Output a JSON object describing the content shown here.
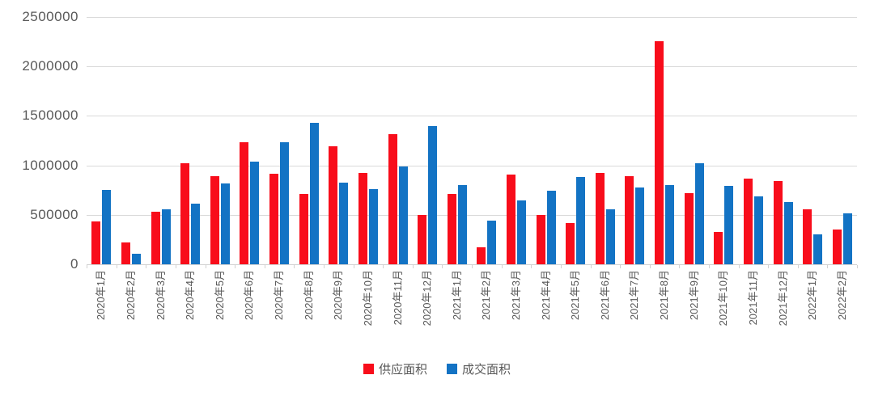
{
  "chart_data": {
    "type": "bar",
    "title": "",
    "categories": [
      "2020年1月",
      "2020年2月",
      "2020年3月",
      "2020年4月",
      "2020年5月",
      "2020年6月",
      "2020年7月",
      "2020年8月",
      "2020年9月",
      "2020年10月",
      "2020年11月",
      "2020年12月",
      "2021年1月",
      "2021年2月",
      "2021年3月",
      "2021年4月",
      "2021年5月",
      "2021年6月",
      "2021年7月",
      "2021年8月",
      "2021年9月",
      "2021年10月",
      "2021年11月",
      "2021年12月",
      "2022年1月",
      "2022年2月"
    ],
    "series": [
      {
        "name": "供应面积",
        "color": "#f80d1b",
        "values": [
          430000,
          220000,
          530000,
          1020000,
          890000,
          1230000,
          915000,
          715000,
          1190000,
          920000,
          1315000,
          495000,
          710000,
          170000,
          910000,
          495000,
          420000,
          920000,
          895000,
          2255000,
          720000,
          330000,
          870000,
          840000,
          555000,
          350000
        ]
      },
      {
        "name": "成交面积",
        "color": "#1373c4",
        "values": [
          750000,
          105000,
          560000,
          615000,
          820000,
          1035000,
          1230000,
          1430000,
          825000,
          760000,
          990000,
          1395000,
          800000,
          445000,
          645000,
          745000,
          885000,
          560000,
          780000,
          805000,
          1020000,
          795000,
          690000,
          630000,
          305000,
          515000
        ]
      }
    ],
    "ylim": [
      0,
      2500000
    ],
    "ytick_interval": 500000,
    "yticks": [
      "0",
      "500000",
      "1000000",
      "1500000",
      "2000000",
      "2500000"
    ],
    "grid": "horizontal",
    "legend_position": "bottom-center",
    "colors": {
      "gridline": "#d9d9d9",
      "axis": "#d2d2d2",
      "label_text": "#595959",
      "background": "#ffffff"
    }
  }
}
